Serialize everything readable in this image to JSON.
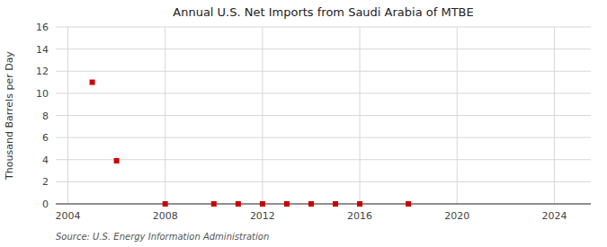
{
  "chart_data": {
    "type": "scatter",
    "title": "Annual U.S. Net Imports from Saudi Arabia of MTBE",
    "ylabel": "Thousand Barrels per Day",
    "annotation": "Source: U.S. Energy Information Administration",
    "x": [
      2005,
      2006,
      2008,
      2010,
      2011,
      2012,
      2013,
      2014,
      2015,
      2016,
      2018
    ],
    "values": [
      11.0,
      3.9,
      0.0,
      0.0,
      0.0,
      0.0,
      0.0,
      0.0,
      0.0,
      0.0,
      0.0
    ],
    "color": "#cc0000",
    "marker": "square",
    "xlim": [
      2003.5,
      2025.5
    ],
    "xticks": [
      2004,
      2008,
      2012,
      2016,
      2020,
      2024
    ],
    "ylim": [
      0,
      16
    ],
    "yticks": [
      0,
      2,
      4,
      6,
      8,
      10,
      12,
      14,
      16
    ],
    "grid": true
  }
}
